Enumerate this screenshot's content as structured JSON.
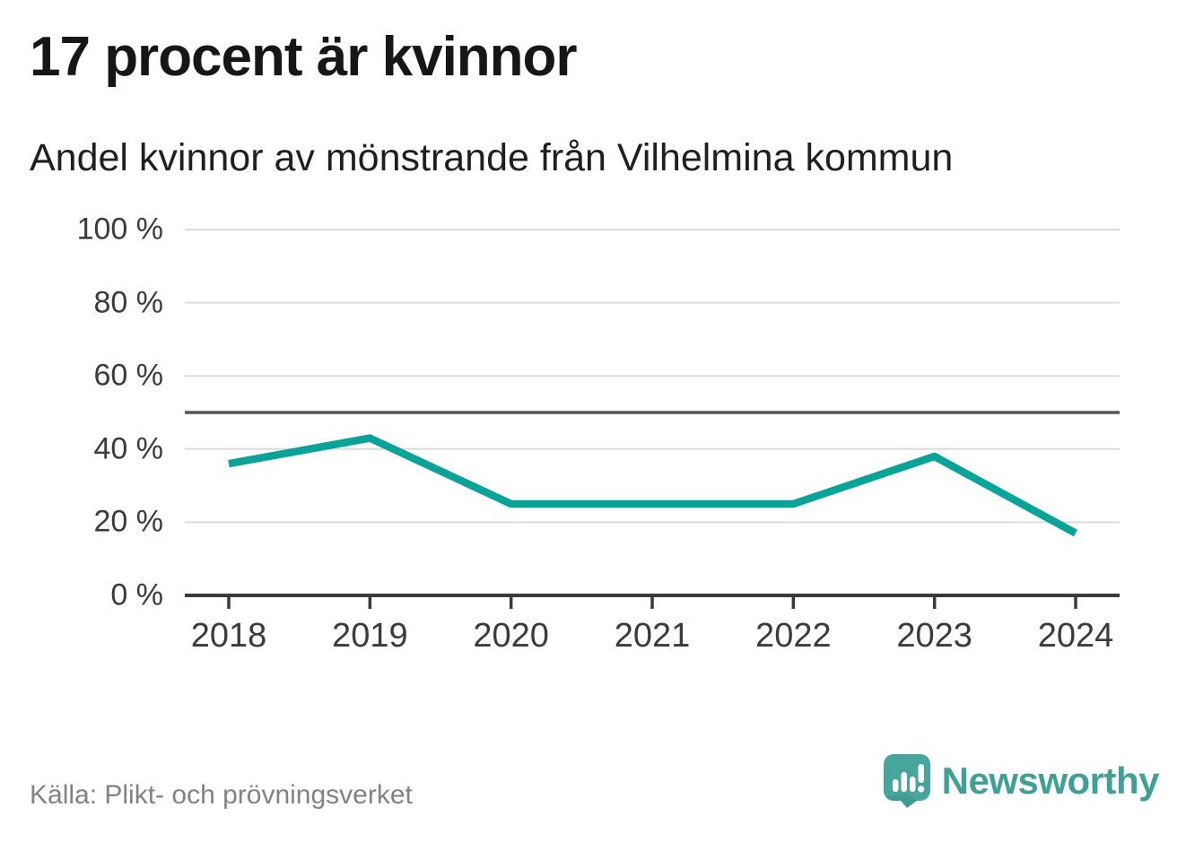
{
  "header": {
    "title": "17 procent är kvinnor",
    "subtitle": "Andel kvinnor av mönstrande från Vilhelmina kommun"
  },
  "chart_data": {
    "type": "line",
    "title": "17 procent är kvinnor",
    "subtitle": "Andel kvinnor av mönstrande från Vilhelmina kommun",
    "categories": [
      "2018",
      "2019",
      "2020",
      "2021",
      "2022",
      "2023",
      "2024"
    ],
    "series": [
      {
        "name": "Andel kvinnor av mönstrande",
        "values": [
          36,
          43,
          25,
          25,
          25,
          38,
          17
        ]
      }
    ],
    "ylim": [
      0,
      100
    ],
    "yticks": [
      0,
      20,
      40,
      60,
      80,
      100
    ],
    "ytick_labels": [
      "0 %",
      "20 %",
      "40 %",
      "60 %",
      "80 %",
      "100 %"
    ],
    "reference_line": 50,
    "grid": true,
    "legend_position": "none",
    "xlabel": "",
    "ylabel": "",
    "colors": {
      "line": "#0aa39a",
      "grid": "#dcdcdc",
      "reference": "#555557",
      "axis": "#3a3a3c",
      "tick_text": "#3b3b3b"
    }
  },
  "footer": {
    "source": "Källa: Plikt- och prövningsverket",
    "brand": "Newsworthy",
    "brand_color": "#41a096",
    "logo_icon": "newsworthy-speech-bubble-chart-icon"
  }
}
